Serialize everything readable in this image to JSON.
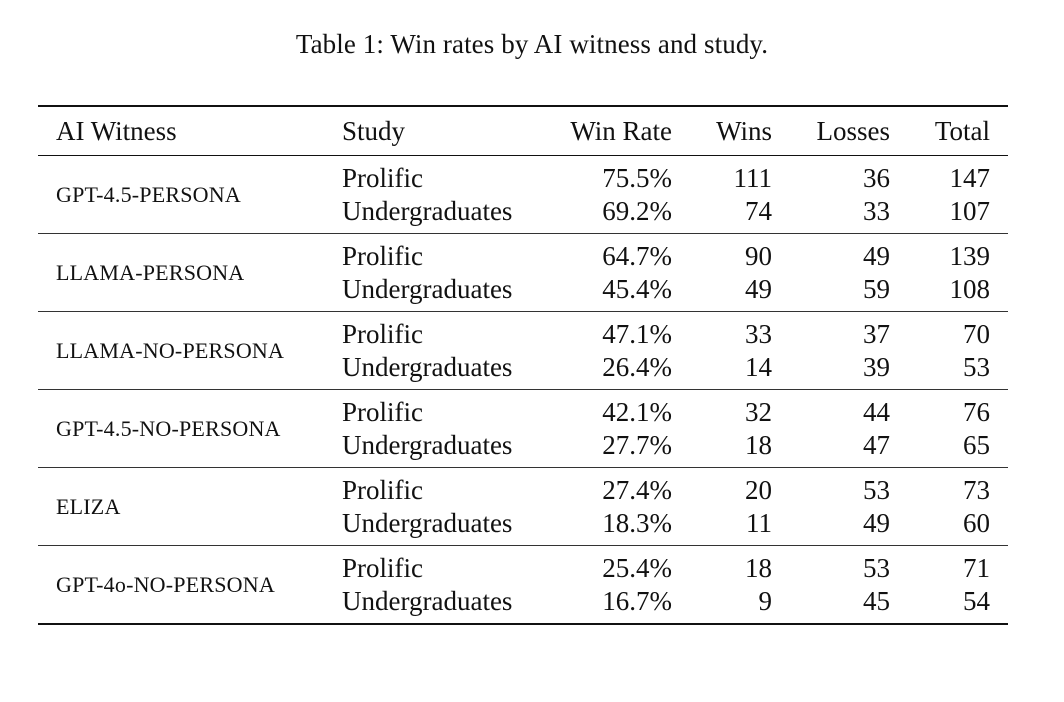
{
  "caption": "Table 1: Win rates by AI witness and study.",
  "columns": {
    "witness": "AI Witness",
    "study": "Study",
    "win_rate": "Win Rate",
    "wins": "Wins",
    "losses": "Losses",
    "total": "Total"
  },
  "rows": [
    {
      "witness": "GPT-4.5-PERSONA",
      "studies": [
        {
          "study": "Prolific",
          "win_rate": "75.5%",
          "wins": "111",
          "losses": "36",
          "total": "147"
        },
        {
          "study": "Undergraduates",
          "win_rate": "69.2%",
          "wins": "74",
          "losses": "33",
          "total": "107"
        }
      ]
    },
    {
      "witness": "LLAMA-PERSONA",
      "studies": [
        {
          "study": "Prolific",
          "win_rate": "64.7%",
          "wins": "90",
          "losses": "49",
          "total": "139"
        },
        {
          "study": "Undergraduates",
          "win_rate": "45.4%",
          "wins": "49",
          "losses": "59",
          "total": "108"
        }
      ]
    },
    {
      "witness": "LLAMA-NO-PERSONA",
      "studies": [
        {
          "study": "Prolific",
          "win_rate": "47.1%",
          "wins": "33",
          "losses": "37",
          "total": "70"
        },
        {
          "study": "Undergraduates",
          "win_rate": "26.4%",
          "wins": "14",
          "losses": "39",
          "total": "53"
        }
      ]
    },
    {
      "witness": "GPT-4.5-NO-PERSONA",
      "studies": [
        {
          "study": "Prolific",
          "win_rate": "42.1%",
          "wins": "32",
          "losses": "44",
          "total": "76"
        },
        {
          "study": "Undergraduates",
          "win_rate": "27.7%",
          "wins": "18",
          "losses": "47",
          "total": "65"
        }
      ]
    },
    {
      "witness": "ELIZA",
      "studies": [
        {
          "study": "Prolific",
          "win_rate": "27.4%",
          "wins": "20",
          "losses": "53",
          "total": "73"
        },
        {
          "study": "Undergraduates",
          "win_rate": "18.3%",
          "wins": "11",
          "losses": "49",
          "total": "60"
        }
      ]
    },
    {
      "witness": "GPT-4o-NO-PERSONA",
      "studies": [
        {
          "study": "Prolific",
          "win_rate": "25.4%",
          "wins": "18",
          "losses": "53",
          "total": "71"
        },
        {
          "study": "Undergraduates",
          "win_rate": "16.7%",
          "wins": "9",
          "losses": "45",
          "total": "54"
        }
      ]
    }
  ]
}
